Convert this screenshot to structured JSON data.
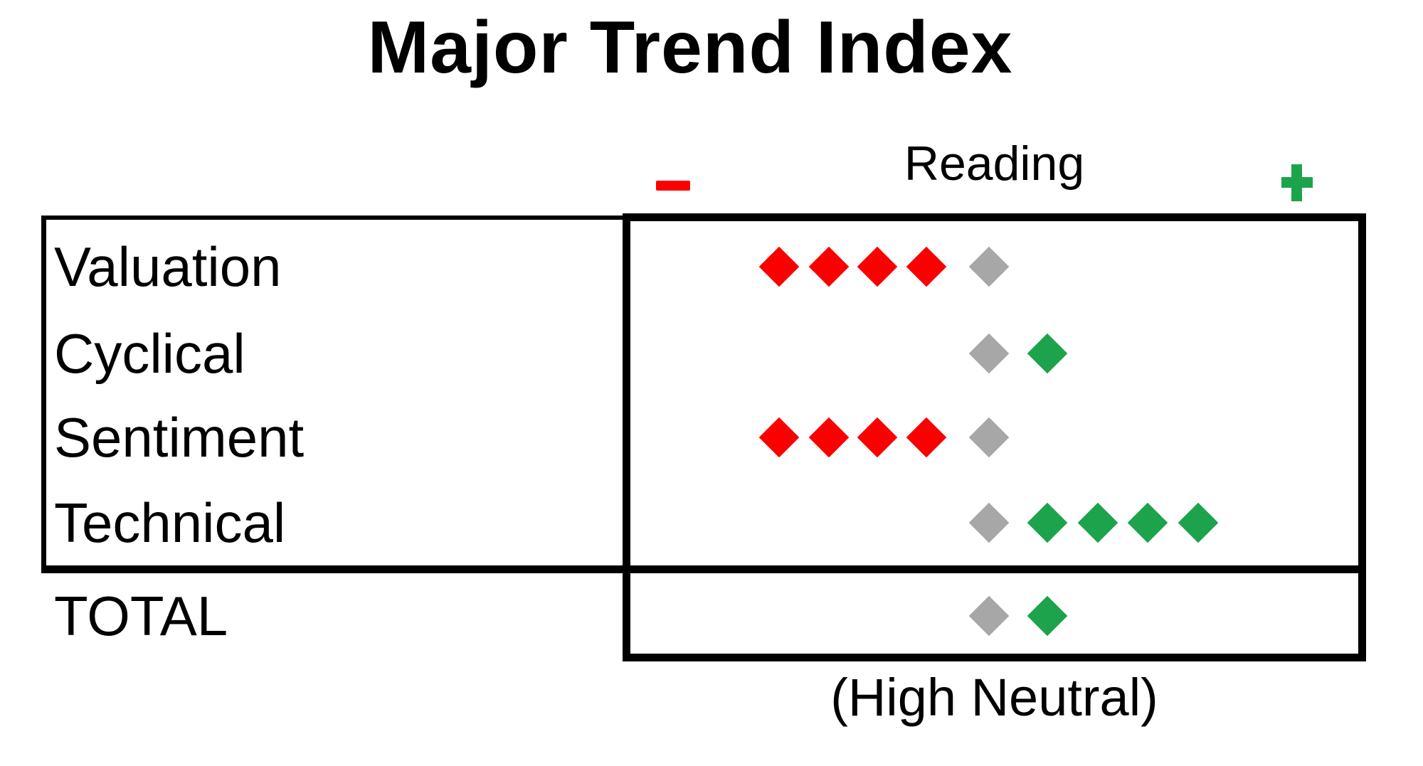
{
  "title": "Major Trend Index",
  "header": {
    "label": "Reading",
    "minus_symbol": "-",
    "plus_symbol": "+"
  },
  "footnote": "(High Neutral)",
  "palette": {
    "red": "#FA0000",
    "green": "#1CA34C",
    "gray": "#A7A7A7",
    "line": "#000000"
  },
  "rows": [
    {
      "label": "Valuation",
      "diamonds": [
        {
          "slot": -4,
          "color": "red"
        },
        {
          "slot": -3,
          "color": "red"
        },
        {
          "slot": -2,
          "color": "red"
        },
        {
          "slot": -1,
          "color": "red"
        },
        {
          "slot": 0,
          "color": "gray"
        }
      ]
    },
    {
      "label": "Cyclical",
      "diamonds": [
        {
          "slot": 0,
          "color": "gray"
        },
        {
          "slot": 1,
          "color": "green"
        }
      ]
    },
    {
      "label": "Sentiment",
      "diamonds": [
        {
          "slot": -4,
          "color": "red"
        },
        {
          "slot": -3,
          "color": "red"
        },
        {
          "slot": -2,
          "color": "red"
        },
        {
          "slot": -1,
          "color": "red"
        },
        {
          "slot": 0,
          "color": "gray"
        }
      ]
    },
    {
      "label": "Technical",
      "diamonds": [
        {
          "slot": 0,
          "color": "gray"
        },
        {
          "slot": 1,
          "color": "green"
        },
        {
          "slot": 2,
          "color": "green"
        },
        {
          "slot": 3,
          "color": "green"
        },
        {
          "slot": 4,
          "color": "green"
        }
      ]
    }
  ],
  "total": {
    "label": "TOTAL",
    "diamonds": [
      {
        "slot": 0,
        "color": "gray"
      },
      {
        "slot": 1,
        "color": "green"
      }
    ]
  },
  "chart_data": {
    "type": "scatter",
    "title": "Major Trend Index",
    "categories": [
      "Valuation",
      "Cyclical",
      "Sentiment",
      "Technical",
      "TOTAL"
    ],
    "x_axis_label": "Reading",
    "x_axis_negative_end": "-",
    "x_axis_positive_end": "+",
    "series": [
      {
        "name": "red negative diamonds",
        "values": [
          4,
          0,
          4,
          0,
          0
        ]
      },
      {
        "name": "gray neutral diamonds",
        "values": [
          1,
          1,
          1,
          1,
          1
        ]
      },
      {
        "name": "green positive diamonds",
        "values": [
          0,
          1,
          0,
          4,
          1
        ]
      }
    ],
    "annotation": "(High Neutral)",
    "legend_position": "none",
    "grid": false
  }
}
